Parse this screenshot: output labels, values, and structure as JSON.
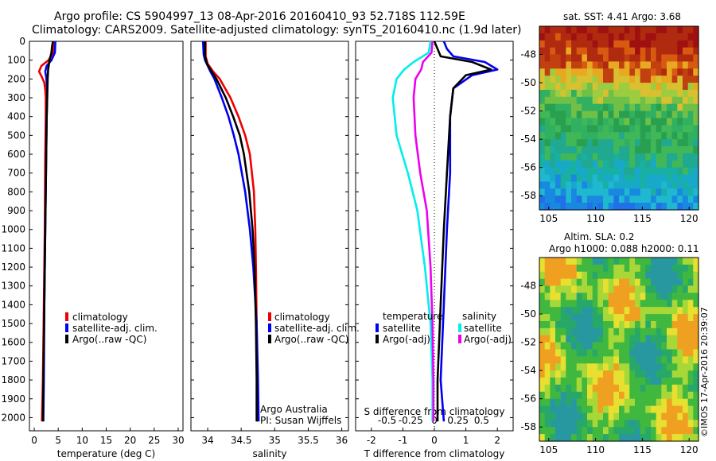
{
  "header": {
    "line1": "Argo profile: CS 5904997_13 08-Apr-2016 20160410_93 52.718S 112.59E",
    "line2": "Climatology: CARS2009. Satellite-adjusted climatology: synTS_20160410.nc (1.9d later)"
  },
  "colors": {
    "climatology": "#ee0000",
    "satellite": "#0000ee",
    "argo": "#000000",
    "salinity_satellite": "#00eeee",
    "salinity_argo": "#ee00ee"
  },
  "legend": {
    "climatology": "climatology",
    "satellite_adj": "satellite-adj. clim.",
    "argo_raw": "Argo(..raw -QC)",
    "temperature": "temperature",
    "salinity": "salinity",
    "satellite": "satellite",
    "argo_adj": "Argo(-adj)"
  },
  "attribution": {
    "line1": "Argo Australia",
    "line2": "PI: Susan Wijffels"
  },
  "side_text": "©IMOS 17-Apr-2016 20:39:07",
  "chart_data": [
    {
      "id": "temperature",
      "type": "line",
      "xlabel": "temperature (deg C)",
      "ylabel": "",
      "xlim": [
        -1,
        31
      ],
      "ylim": [
        2070,
        0
      ],
      "xticks": [
        0,
        5,
        10,
        15,
        20,
        25,
        30
      ],
      "yticks": [
        0,
        100,
        200,
        300,
        400,
        500,
        600,
        700,
        800,
        900,
        1000,
        1100,
        1200,
        1300,
        1400,
        1500,
        1600,
        1700,
        1800,
        1900,
        2000
      ],
      "series": [
        {
          "name": "climatology",
          "color": "#ee0000",
          "depth": [
            0,
            60,
            100,
            130,
            160,
            190,
            220,
            260,
            300,
            400,
            600,
            1000,
            1400,
            1800,
            2020
          ],
          "values": [
            4.0,
            3.9,
            3.0,
            1.5,
            1.0,
            1.6,
            2.1,
            2.3,
            2.4,
            2.4,
            2.3,
            2.2,
            2.0,
            1.8,
            1.6
          ]
        },
        {
          "name": "satellite-adj. clim.",
          "color": "#0000ee",
          "depth": [
            0,
            60,
            100,
            130,
            160,
            190,
            220,
            260,
            300,
            400,
            600,
            1000,
            1400,
            1800,
            2020
          ],
          "values": [
            4.4,
            4.3,
            3.6,
            2.6,
            2.3,
            2.5,
            2.6,
            2.7,
            2.7,
            2.6,
            2.5,
            2.3,
            2.1,
            2.0,
            1.9
          ]
        },
        {
          "name": "Argo(..raw -QC)",
          "color": "#000000",
          "depth": [
            0,
            30,
            60,
            100,
            150,
            200,
            300,
            400,
            600,
            1000,
            1400,
            1800,
            2020
          ],
          "values": [
            3.9,
            3.7,
            3.6,
            3.2,
            2.9,
            2.8,
            2.7,
            2.6,
            2.5,
            2.3,
            2.1,
            1.9,
            1.8
          ]
        }
      ]
    },
    {
      "id": "salinity",
      "type": "line",
      "xlabel": "salinity",
      "ylabel": "",
      "xlim": [
        33.75,
        36.1
      ],
      "ylim": [
        2070,
        0
      ],
      "xticks": [
        34,
        34.5,
        35,
        35.5,
        36
      ],
      "series": [
        {
          "name": "climatology",
          "color": "#ee0000",
          "depth": [
            0,
            80,
            120,
            160,
            200,
            300,
            400,
            500,
            600,
            800,
            1000,
            1200,
            1500,
            1800,
            2020
          ],
          "values": [
            33.97,
            33.97,
            34.0,
            34.08,
            34.18,
            34.34,
            34.46,
            34.56,
            34.63,
            34.69,
            34.71,
            34.72,
            34.73,
            34.74,
            34.74
          ]
        },
        {
          "name": "satellite-adj. clim.",
          "color": "#0000ee",
          "depth": [
            0,
            70,
            100,
            130,
            160,
            200,
            300,
            400,
            500,
            600,
            800,
            1000,
            1200,
            1500,
            1800,
            2020
          ],
          "values": [
            33.93,
            33.94,
            33.96,
            34.0,
            34.04,
            34.1,
            34.21,
            34.31,
            34.39,
            34.46,
            34.56,
            34.63,
            34.68,
            34.73,
            34.75,
            34.76
          ]
        },
        {
          "name": "Argo(..raw -QC)",
          "color": "#000000",
          "depth": [
            0,
            80,
            120,
            160,
            200,
            300,
            400,
            500,
            600,
            800,
            1000,
            1200,
            1500,
            1800,
            2020
          ],
          "values": [
            33.96,
            33.96,
            33.99,
            34.06,
            34.13,
            34.27,
            34.38,
            34.48,
            34.54,
            34.62,
            34.67,
            34.7,
            34.72,
            34.73,
            34.73
          ]
        }
      ]
    },
    {
      "id": "difference",
      "type": "line",
      "xlabel": "T difference from climatology",
      "xlabel_top": "S difference from climatology",
      "xlim": [
        -2.5,
        2.5
      ],
      "ylim": [
        2070,
        0
      ],
      "xticks": [
        -2,
        -1,
        0,
        1,
        2
      ],
      "xticks_top": [
        "-0.5",
        "-0.25",
        "0",
        "0.25",
        "0.5"
      ],
      "series": [
        {
          "name": "temperature satellite",
          "color": "#0000ee",
          "depth": [
            0,
            40,
            80,
            110,
            150,
            180,
            250,
            400,
            700,
            1000,
            1400,
            1800,
            2020
          ],
          "values": [
            0.3,
            0.4,
            0.6,
            1.6,
            2.0,
            1.2,
            0.6,
            0.5,
            0.5,
            0.4,
            0.3,
            0.2,
            0.3
          ]
        },
        {
          "name": "temperature Argo(-adj)",
          "color": "#000000",
          "depth": [
            0,
            40,
            80,
            110,
            150,
            180,
            250,
            400,
            700,
            1000,
            1400,
            1800,
            2020
          ],
          "values": [
            0.0,
            0.1,
            0.2,
            1.2,
            1.8,
            1.0,
            0.6,
            0.5,
            0.4,
            0.3,
            0.2,
            0.1,
            0.1
          ]
        },
        {
          "name": "salinity satellite",
          "color": "#00eeee",
          "depth": [
            0,
            60,
            110,
            150,
            200,
            300,
            500,
            700,
            900,
            1200,
            1500,
            1800,
            2020
          ],
          "values": [
            -0.04,
            -0.06,
            -0.22,
            -0.32,
            -0.4,
            -0.44,
            -0.4,
            -0.28,
            -0.18,
            -0.1,
            -0.04,
            -0.02,
            -0.02
          ]
        },
        {
          "name": "salinity Argo(-adj)",
          "color": "#ee00ee",
          "depth": [
            0,
            60,
            110,
            150,
            200,
            300,
            500,
            700,
            900,
            1200,
            1500,
            1800,
            2020
          ],
          "values": [
            -0.02,
            -0.03,
            -0.12,
            -0.14,
            -0.2,
            -0.22,
            -0.2,
            -0.15,
            -0.08,
            -0.04,
            -0.02,
            -0.01,
            -0.01
          ]
        }
      ]
    },
    {
      "id": "sst-map",
      "type": "heatmap",
      "title": "sat. SST: 4.41  Argo: 3.68",
      "xlim": [
        104,
        121
      ],
      "ylim": [
        -59,
        -46
      ],
      "xticks": [
        105,
        110,
        115,
        120
      ],
      "yticks": [
        -48,
        -50,
        -52,
        -54,
        -56,
        -58
      ]
    },
    {
      "id": "sla-map",
      "type": "heatmap",
      "title": "Altim. SLA: 0.2",
      "subtitle": "Argo h1000: 0.088 h2000: 0.11",
      "xlim": [
        104,
        121
      ],
      "ylim": [
        -59,
        -46
      ],
      "xticks": [
        105,
        110,
        115,
        120
      ],
      "yticks": [
        -48,
        -50,
        -52,
        -54,
        -56,
        -58
      ]
    }
  ]
}
